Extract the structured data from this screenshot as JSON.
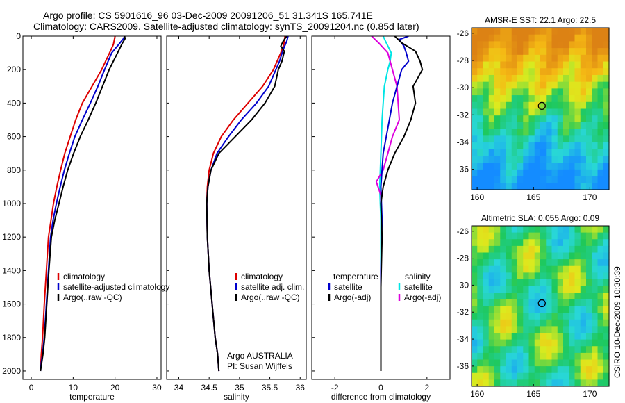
{
  "figure": {
    "title_line1": "Argo profile: CS 5901616_96 03-Dec-2009 20091206_51 31.341S 165.741E",
    "title_line2": "Climatology: CARS2009. Satellite-adjusted climatology: synTS_20091204.nc (0.85d later)",
    "side_label": "CSIRO 10-Dec-2009 10:30:39",
    "colors": {
      "climatology": "#dd0000",
      "satellite": "#0000cc",
      "argo": "#000000",
      "cyan": "#00e5e5",
      "magenta": "#dd00dd",
      "marker": "#000000"
    }
  },
  "chart_data": [
    {
      "type": "line",
      "title": "",
      "xlabel": "temperature",
      "ylabel": "",
      "xlim": [
        -2,
        31
      ],
      "ylim": [
        2050,
        0
      ],
      "xticks": [
        "0",
        "10",
        "20",
        "30"
      ],
      "yticks": [
        "0",
        "200",
        "400",
        "600",
        "800",
        "1000",
        "1200",
        "1400",
        "1600",
        "1800",
        "2000"
      ],
      "legend": [
        "climatology",
        "satellite-adjusted climatology",
        "Argo(..raw -QC)"
      ],
      "series": [
        {
          "name": "climatology",
          "color": "#dd0000",
          "x": [
            20.0,
            19.6,
            18.7,
            16.8,
            14.5,
            12.2,
            10.6,
            9.3,
            8.0,
            7.0,
            6.1,
            5.3,
            4.7,
            4.1,
            3.6,
            3.1,
            2.7,
            2.4,
            2.2
          ],
          "y": [
            0,
            50,
            100,
            200,
            300,
            400,
            500,
            600,
            700,
            800,
            900,
            1000,
            1100,
            1200,
            1400,
            1600,
            1800,
            1900,
            2000
          ]
        },
        {
          "name": "satellite-adjusted climatology",
          "color": "#0000cc",
          "x": [
            22.3,
            22.0,
            21.2,
            19.2,
            17.5,
            15.9,
            14.1,
            12.2,
            10.4,
            9.1,
            7.9,
            6.9,
            6.0,
            5.2,
            4.6,
            4.1,
            3.6,
            3.1,
            2.7,
            2.4,
            2.2
          ],
          "y": [
            0,
            15,
            40,
            100,
            200,
            300,
            400,
            500,
            600,
            700,
            800,
            900,
            1000,
            1100,
            1200,
            1400,
            1600,
            1800,
            1900,
            1950,
            2000
          ]
        },
        {
          "name": "Argo(..raw -QC)",
          "color": "#000000",
          "x": [
            22.3,
            22.4,
            21.8,
            20.6,
            18.6,
            17.0,
            15.4,
            13.6,
            11.7,
            10.1,
            8.7,
            7.6,
            6.6,
            5.6,
            4.8,
            4.2,
            3.7,
            3.2,
            2.8,
            2.5,
            2.2
          ],
          "y": [
            0,
            15,
            40,
            100,
            200,
            300,
            400,
            500,
            600,
            700,
            800,
            900,
            1000,
            1100,
            1200,
            1400,
            1600,
            1800,
            1900,
            1950,
            2000
          ]
        }
      ]
    },
    {
      "type": "line",
      "title": "",
      "xlabel": "salinity",
      "ylabel": "",
      "xlim": [
        33.8,
        36.1
      ],
      "ylim": [
        2050,
        0
      ],
      "xticks": [
        "34",
        "34.5",
        "35",
        "35.5",
        "36"
      ],
      "legend": [
        "climatology",
        "satellite adj. clim.",
        "Argo(..raw -QC)"
      ],
      "annotations": [
        "Argo AUSTRALIA",
        "PI: Susan Wijffels"
      ],
      "series": [
        {
          "name": "climatology",
          "color": "#dd0000",
          "x": [
            35.75,
            35.73,
            35.68,
            35.56,
            35.38,
            35.14,
            34.9,
            34.7,
            34.57,
            34.5,
            34.47,
            34.46,
            34.47,
            34.5,
            34.55,
            34.6,
            34.64,
            34.66
          ],
          "y": [
            0,
            50,
            100,
            200,
            300,
            400,
            500,
            600,
            700,
            800,
            900,
            1000,
            1200,
            1400,
            1600,
            1800,
            1900,
            2000
          ]
        },
        {
          "name": "satellite adj. clim.",
          "color": "#0000cc",
          "x": [
            35.8,
            35.78,
            35.72,
            35.66,
            35.6,
            35.48,
            35.28,
            35.03,
            34.82,
            34.63,
            34.53,
            34.48,
            34.46,
            34.47,
            34.5,
            34.55,
            34.6,
            34.64,
            34.66
          ],
          "y": [
            0,
            30,
            80,
            150,
            200,
            300,
            400,
            500,
            600,
            700,
            800,
            900,
            1000,
            1200,
            1400,
            1600,
            1800,
            1900,
            2000
          ]
        },
        {
          "name": "Argo(..raw -QC)",
          "color": "#000000",
          "x": [
            35.78,
            35.72,
            35.68,
            35.74,
            35.7,
            35.64,
            35.58,
            35.42,
            35.2,
            34.93,
            34.66,
            34.53,
            34.48,
            34.46,
            34.47,
            34.5,
            34.55,
            34.6,
            34.64,
            34.66
          ],
          "y": [
            0,
            30,
            60,
            90,
            150,
            200,
            300,
            400,
            500,
            600,
            700,
            800,
            900,
            1000,
            1200,
            1400,
            1600,
            1800,
            1900,
            2000
          ]
        }
      ]
    },
    {
      "type": "line",
      "title": "",
      "xlabel": "difference from climatology",
      "ylabel": "",
      "xlim": [
        -3,
        3
      ],
      "ylim": [
        2050,
        0
      ],
      "xticks": [
        "-2",
        "0",
        "2"
      ],
      "legend": [
        "temperature",
        "satellite",
        "Argo(-adj)",
        "salinity",
        "satellite",
        "Argo(-adj)"
      ],
      "series": [
        {
          "name": "satellite",
          "color": "#0000cc",
          "x": [
            1.2,
            0.8,
            1.0,
            1.1,
            1.2,
            0.9,
            0.7,
            0.5,
            0.3,
            0.1,
            0.0,
            0.05,
            0.0,
            0.0,
            0.0
          ],
          "y": [
            0,
            20,
            60,
            100,
            150,
            200,
            300,
            400,
            550,
            700,
            900,
            1100,
            1400,
            1700,
            2000
          ]
        },
        {
          "name": "Argo(-adj)",
          "color": "#000000",
          "x": [
            0.6,
            0.9,
            1.5,
            1.7,
            1.8,
            1.6,
            1.4,
            1.5,
            1.3,
            1.0,
            0.6,
            0.3,
            0.1,
            0.0,
            0.05,
            0.0,
            0.0
          ],
          "y": [
            0,
            40,
            90,
            150,
            200,
            250,
            300,
            400,
            500,
            600,
            700,
            800,
            900,
            1000,
            1200,
            1500,
            2000
          ]
        },
        {
          "name": "satellite",
          "color": "#00e5e5",
          "x": [
            0.1,
            0.2,
            0.45,
            0.4,
            0.3,
            0.15,
            0.1,
            0.05,
            0.0,
            -0.05,
            0.0,
            0.0,
            0.0,
            0.0
          ],
          "y": [
            0,
            30,
            100,
            150,
            200,
            300,
            400,
            500,
            700,
            900,
            1100,
            1400,
            1700,
            2000
          ]
        },
        {
          "name": "Argo(-adj)",
          "color": "#dd00dd",
          "x": [
            -0.4,
            -0.1,
            0.3,
            0.5,
            0.7,
            0.8,
            0.5,
            0.3,
            0.1,
            -0.2,
            0.0,
            0.0
          ],
          "y": [
            0,
            40,
            100,
            200,
            300,
            500,
            600,
            700,
            800,
            870,
            950,
            1000
          ]
        }
      ]
    },
    {
      "type": "heatmap",
      "title": "AMSR-E SST: 22.1  Argo: 22.5",
      "xticks": [
        "160",
        "165",
        "170"
      ],
      "yticks": [
        "-26",
        "-28",
        "-30",
        "-32",
        "-34",
        "-36"
      ],
      "xlim": [
        159.5,
        171.7
      ],
      "ylim": [
        -37.5,
        -25.6
      ],
      "marker": {
        "lon": 165.741,
        "lat": -31.341
      }
    },
    {
      "type": "heatmap",
      "title": "Altimetric SLA: 0.055  Argo: 0.09",
      "xticks": [
        "160",
        "165",
        "170"
      ],
      "yticks": [
        "-26",
        "-28",
        "-30",
        "-32",
        "-34",
        "-36"
      ],
      "xlim": [
        159.5,
        171.7
      ],
      "ylim": [
        -37.5,
        -25.6
      ],
      "marker": {
        "lon": 165.741,
        "lat": -31.341
      }
    }
  ]
}
